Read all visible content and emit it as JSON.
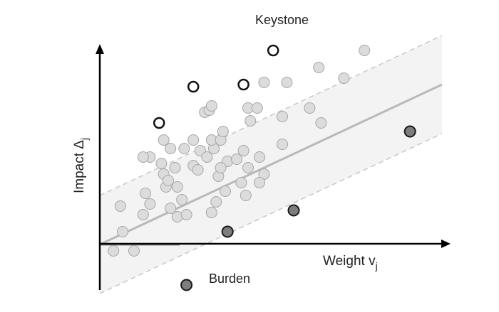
{
  "chart_data": {
    "type": "scatter",
    "xlabel": "Weight v",
    "xlabel_sub": "j",
    "ylabel": "Impact Δ",
    "ylabel_sub": "j",
    "annotations": {
      "top": "Keystone",
      "bottom": "Burden"
    },
    "xlim": [
      0,
      15
    ],
    "ylim": [
      -2.2,
      9.8
    ],
    "trend": {
      "slope": 0.5,
      "intercept": 0.0,
      "band": 2.3
    },
    "series": [
      {
        "role": "typical",
        "style": "light-gray-filled",
        "points": [
          [
            0.6,
            -0.3
          ],
          [
            1.5,
            -0.3
          ],
          [
            1.0,
            0.6
          ],
          [
            0.9,
            1.8
          ],
          [
            1.9,
            1.4
          ],
          [
            2.2,
            1.9
          ],
          [
            2.0,
            2.4
          ],
          [
            3.1,
            1.7
          ],
          [
            3.4,
            1.3
          ],
          [
            3.8,
            1.4
          ],
          [
            3.4,
            2.7
          ],
          [
            3.6,
            2.1
          ],
          [
            2.9,
            2.7
          ],
          [
            2.8,
            3.3
          ],
          [
            3.0,
            3.0
          ],
          [
            3.3,
            3.6
          ],
          [
            2.7,
            3.8
          ],
          [
            2.2,
            4.1
          ],
          [
            1.9,
            4.1
          ],
          [
            3.1,
            4.5
          ],
          [
            3.7,
            4.5
          ],
          [
            2.8,
            4.9
          ],
          [
            4.1,
            3.7
          ],
          [
            4.4,
            4.4
          ],
          [
            4.3,
            3.5
          ],
          [
            4.7,
            4.1
          ],
          [
            5.0,
            4.5
          ],
          [
            4.9,
            4.9
          ],
          [
            5.3,
            4.9
          ],
          [
            5.4,
            5.3
          ],
          [
            4.1,
            4.9
          ],
          [
            4.6,
            6.2
          ],
          [
            4.8,
            6.3
          ],
          [
            4.9,
            6.5
          ],
          [
            5.2,
            3.2
          ],
          [
            5.6,
            3.9
          ],
          [
            5.3,
            3.6
          ],
          [
            5.5,
            2.5
          ],
          [
            5.1,
            2.0
          ],
          [
            4.9,
            1.5
          ],
          [
            6.3,
            4.4
          ],
          [
            6.5,
            3.6
          ],
          [
            6.0,
            4.0
          ],
          [
            6.2,
            2.9
          ],
          [
            6.4,
            2.3
          ],
          [
            7.0,
            4.1
          ],
          [
            7.2,
            3.3
          ],
          [
            7.0,
            2.9
          ],
          [
            6.5,
            6.4
          ],
          [
            6.9,
            6.4
          ],
          [
            6.6,
            5.8
          ],
          [
            7.2,
            7.6
          ],
          [
            8.2,
            7.6
          ],
          [
            8.0,
            6.0
          ],
          [
            8.0,
            4.7
          ],
          [
            9.2,
            6.4
          ],
          [
            9.7,
            5.7
          ],
          [
            9.6,
            8.3
          ],
          [
            10.7,
            7.8
          ],
          [
            11.6,
            9.1
          ]
        ]
      },
      {
        "role": "keystone",
        "style": "white-filled-black-stroke",
        "points": [
          [
            2.6,
            5.7
          ],
          [
            4.1,
            7.4
          ],
          [
            6.3,
            7.5
          ],
          [
            7.6,
            9.1
          ]
        ]
      },
      {
        "role": "burden",
        "style": "dark-gray-filled",
        "points": [
          [
            5.6,
            0.6
          ],
          [
            8.5,
            1.6
          ],
          [
            13.6,
            5.3
          ],
          [
            3.8,
            -1.9
          ]
        ]
      }
    ],
    "colors": {
      "axis": "#000000",
      "band_fill": "#f3f3f3",
      "band_edge": "#c8c8c8",
      "trend_line": "#b9b9b9",
      "baseline": "#888888",
      "typical_fill": "#dcdcdc",
      "typical_stroke": "#a5a5a5",
      "keystone_fill": "#ffffff",
      "keystone_stroke": "#111111",
      "burden_fill": "#7d7d7d",
      "burden_stroke": "#1a1a1a"
    }
  }
}
